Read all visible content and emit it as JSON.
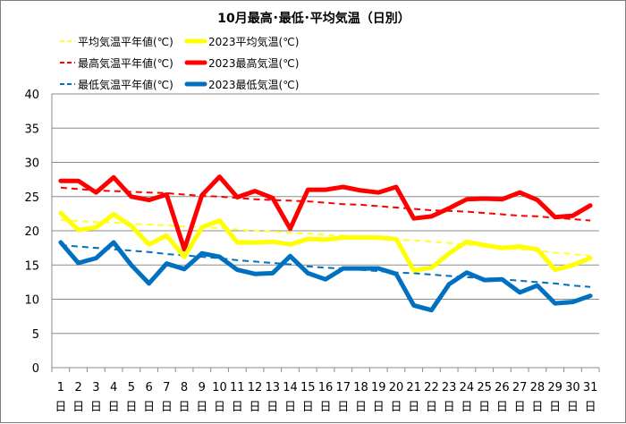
{
  "chart_data": {
    "type": "line",
    "title": "10月最高･最低･平均気温（日別）",
    "ylim": [
      0,
      40
    ],
    "yticks": [
      0,
      5,
      10,
      15,
      20,
      25,
      30,
      35,
      40
    ],
    "categories": [
      "1",
      "2",
      "3",
      "4",
      "5",
      "6",
      "7",
      "8",
      "9",
      "10",
      "11",
      "12",
      "13",
      "14",
      "15",
      "16",
      "17",
      "18",
      "19",
      "20",
      "21",
      "22",
      "23",
      "24",
      "25",
      "26",
      "27",
      "28",
      "29",
      "30",
      "31"
    ],
    "category_suffix": "日",
    "grid": true,
    "legend_position": "top",
    "series": [
      {
        "name": "平均気温平年値(℃)",
        "style": "dashed",
        "color": "#ffff33",
        "values": [
          21.6,
          21.4,
          21.3,
          21.2,
          21.0,
          20.9,
          20.8,
          20.6,
          20.5,
          20.4,
          20.2,
          20.0,
          19.9,
          19.7,
          19.6,
          19.4,
          19.3,
          19.1,
          18.9,
          18.7,
          18.6,
          18.4,
          18.2,
          18.0,
          17.7,
          17.5,
          17.3,
          17.1,
          16.8,
          16.6,
          16.3
        ]
      },
      {
        "name": "2023平均気温(℃)",
        "style": "solid",
        "color": "#ffff00",
        "values": [
          22.6,
          20.1,
          20.5,
          22.4,
          20.7,
          18.0,
          19.3,
          16.2,
          20.5,
          21.5,
          18.3,
          18.3,
          18.4,
          18.0,
          18.8,
          18.7,
          19.0,
          19.0,
          19.0,
          18.8,
          14.2,
          14.6,
          16.7,
          18.4,
          17.9,
          17.5,
          17.7,
          17.3,
          14.3,
          15.0,
          16.0
        ]
      },
      {
        "name": "最高気温平年値(℃)",
        "style": "dashed",
        "color": "#ff0000",
        "values": [
          26.3,
          26.1,
          25.9,
          25.8,
          25.7,
          25.6,
          25.5,
          25.3,
          25.1,
          25.0,
          24.8,
          24.6,
          24.5,
          24.4,
          24.3,
          24.1,
          23.9,
          23.8,
          23.6,
          23.4,
          23.2,
          23.0,
          22.9,
          22.8,
          22.6,
          22.4,
          22.2,
          22.1,
          21.9,
          21.7,
          21.5
        ]
      },
      {
        "name": "2023最高気温(℃)",
        "style": "solid",
        "color": "#ff0000",
        "values": [
          27.3,
          27.3,
          25.6,
          27.8,
          25.0,
          24.5,
          25.3,
          17.3,
          25.2,
          27.9,
          24.9,
          25.8,
          24.8,
          20.3,
          26.0,
          26.0,
          26.4,
          25.9,
          25.6,
          26.4,
          21.8,
          22.1,
          23.3,
          24.6,
          24.7,
          24.6,
          25.6,
          24.5,
          22.0,
          22.2,
          23.7
        ]
      },
      {
        "name": "最低気温平年値(℃)",
        "style": "dashed",
        "color": "#0070c0",
        "values": [
          17.9,
          17.7,
          17.5,
          17.3,
          17.1,
          16.9,
          16.6,
          16.4,
          16.2,
          16.0,
          15.7,
          15.5,
          15.3,
          15.1,
          14.8,
          14.6,
          14.5,
          14.3,
          14.1,
          13.9,
          13.8,
          13.6,
          13.4,
          13.2,
          13.1,
          12.9,
          12.7,
          12.5,
          12.3,
          12.0,
          11.8
        ]
      },
      {
        "name": "2023最低気温(℃)",
        "style": "solid",
        "color": "#0070c0",
        "values": [
          18.3,
          15.3,
          16.0,
          18.3,
          15.0,
          12.3,
          15.2,
          14.4,
          16.7,
          16.2,
          14.3,
          13.7,
          13.8,
          16.3,
          13.8,
          12.9,
          14.5,
          14.5,
          14.5,
          13.7,
          9.1,
          8.4,
          12.2,
          13.9,
          12.8,
          12.9,
          11.0,
          12.0,
          9.4,
          9.6,
          10.5
        ]
      }
    ]
  }
}
